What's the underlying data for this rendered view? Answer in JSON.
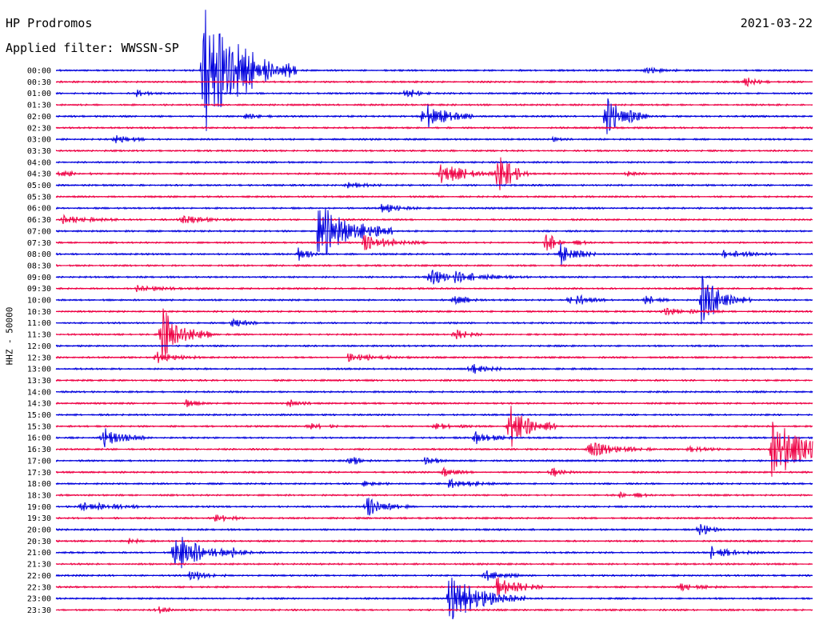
{
  "header": {
    "station": "HP Prodromos",
    "filter": "Applied filter: WWSSN-SP",
    "date": "2021-03-22"
  },
  "colors": {
    "blue_trace": "#0000dd",
    "red_trace": "#ee0044",
    "background": "#ffffff"
  },
  "chart_data": {
    "type": "line",
    "title": "HP Prodromos",
    "subtitle": "Applied filter: WWSSN-SP",
    "ylabel": "HHZ - 50000",
    "xlabel": "",
    "x_unit": "minutes within 30-minute line",
    "xlim": [
      0,
      30
    ],
    "grid": false,
    "rows": [
      "00:00",
      "00:30",
      "01:00",
      "01:30",
      "02:00",
      "02:30",
      "03:00",
      "03:30",
      "04:00",
      "04:30",
      "05:00",
      "05:30",
      "06:00",
      "06:30",
      "07:00",
      "07:30",
      "08:00",
      "08:30",
      "09:00",
      "09:30",
      "10:00",
      "10:30",
      "11:00",
      "11:30",
      "12:00",
      "12:30",
      "13:00",
      "13:30",
      "14:00",
      "14:30",
      "15:00",
      "15:30",
      "16:00",
      "16:30",
      "17:00",
      "17:30",
      "18:00",
      "18:30",
      "19:00",
      "19:30",
      "20:00",
      "20:30",
      "21:00",
      "21:30",
      "22:00",
      "22:30",
      "23:00",
      "23:30"
    ],
    "row_colors": [
      "blue",
      "red"
    ],
    "events": [
      {
        "row": "00:00",
        "minute": 5.8,
        "amplitude": 7.0,
        "duration": 1.5
      },
      {
        "row": "01:00",
        "minute": 3.2,
        "amplitude": 0.6,
        "duration": 0.4
      },
      {
        "row": "01:00",
        "minute": 13.9,
        "amplitude": 0.6,
        "duration": 0.4
      },
      {
        "row": "00:00",
        "minute": 23.4,
        "amplitude": 0.3,
        "duration": 0.6
      },
      {
        "row": "00:30",
        "minute": 27.3,
        "amplitude": 0.6,
        "duration": 0.4
      },
      {
        "row": "02:00",
        "minute": 14.6,
        "amplitude": 1.5,
        "duration": 0.8
      },
      {
        "row": "02:00",
        "minute": 21.8,
        "amplitude": 2.2,
        "duration": 0.7
      },
      {
        "row": "02:00",
        "minute": 7.5,
        "amplitude": 0.3,
        "duration": 0.5
      },
      {
        "row": "03:00",
        "minute": 2.3,
        "amplitude": 0.5,
        "duration": 0.6
      },
      {
        "row": "03:00",
        "minute": 19.7,
        "amplitude": 0.3,
        "duration": 0.3
      },
      {
        "row": "04:30",
        "minute": 15.2,
        "amplitude": 1.2,
        "duration": 1.0
      },
      {
        "row": "04:30",
        "minute": 17.5,
        "amplitude": 2.6,
        "duration": 0.5
      },
      {
        "row": "04:30",
        "minute": 0.2,
        "amplitude": 0.3,
        "duration": 0.6
      },
      {
        "row": "04:30",
        "minute": 22.6,
        "amplitude": 0.3,
        "duration": 0.3
      },
      {
        "row": "05:00",
        "minute": 11.5,
        "amplitude": 0.4,
        "duration": 0.6
      },
      {
        "row": "06:00",
        "minute": 12.9,
        "amplitude": 0.5,
        "duration": 0.6
      },
      {
        "row": "06:30",
        "minute": 0.3,
        "amplitude": 0.4,
        "duration": 1.0
      },
      {
        "row": "06:30",
        "minute": 4.9,
        "amplitude": 0.4,
        "duration": 1.0
      },
      {
        "row": "07:00",
        "minute": 10.4,
        "amplitude": 3.2,
        "duration": 1.2
      },
      {
        "row": "07:30",
        "minute": 12.2,
        "amplitude": 0.9,
        "duration": 1.0
      },
      {
        "row": "07:30",
        "minute": 19.4,
        "amplitude": 0.9,
        "duration": 0.7
      },
      {
        "row": "08:00",
        "minute": 9.6,
        "amplitude": 0.8,
        "duration": 0.4
      },
      {
        "row": "08:00",
        "minute": 20.0,
        "amplitude": 1.1,
        "duration": 0.6
      },
      {
        "row": "08:00",
        "minute": 26.5,
        "amplitude": 0.5,
        "duration": 0.8
      },
      {
        "row": "09:00",
        "minute": 14.8,
        "amplitude": 1.0,
        "duration": 0.5
      },
      {
        "row": "09:00",
        "minute": 15.8,
        "amplitude": 0.5,
        "duration": 1.2
      },
      {
        "row": "09:30",
        "minute": 3.2,
        "amplitude": 0.3,
        "duration": 1.0
      },
      {
        "row": "10:00",
        "minute": 15.8,
        "amplitude": 0.6,
        "duration": 0.5
      },
      {
        "row": "10:00",
        "minute": 20.3,
        "amplitude": 1.0,
        "duration": 0.6
      },
      {
        "row": "10:00",
        "minute": 23.4,
        "amplitude": 0.5,
        "duration": 0.4
      },
      {
        "row": "10:00",
        "minute": 25.6,
        "amplitude": 2.6,
        "duration": 0.8
      },
      {
        "row": "10:30",
        "minute": 24.1,
        "amplitude": 0.3,
        "duration": 1.0
      },
      {
        "row": "11:00",
        "minute": 7.0,
        "amplitude": 0.7,
        "duration": 0.4
      },
      {
        "row": "11:30",
        "minute": 4.2,
        "amplitude": 2.8,
        "duration": 0.8
      },
      {
        "row": "11:30",
        "minute": 15.8,
        "amplitude": 0.6,
        "duration": 0.5
      },
      {
        "row": "12:30",
        "minute": 4.0,
        "amplitude": 0.6,
        "duration": 0.8
      },
      {
        "row": "12:30",
        "minute": 11.6,
        "amplitude": 0.4,
        "duration": 1.0
      },
      {
        "row": "13:00",
        "minute": 16.4,
        "amplitude": 0.6,
        "duration": 0.6
      },
      {
        "row": "14:30",
        "minute": 5.2,
        "amplitude": 0.5,
        "duration": 0.4
      },
      {
        "row": "14:30",
        "minute": 9.2,
        "amplitude": 0.4,
        "duration": 0.4
      },
      {
        "row": "15:30",
        "minute": 17.9,
        "amplitude": 2.6,
        "duration": 0.8
      },
      {
        "row": "15:30",
        "minute": 10.0,
        "amplitude": 0.3,
        "duration": 0.6
      },
      {
        "row": "15:30",
        "minute": 15.0,
        "amplitude": 0.3,
        "duration": 0.8
      },
      {
        "row": "16:00",
        "minute": 1.8,
        "amplitude": 1.4,
        "duration": 0.7
      },
      {
        "row": "16:00",
        "minute": 16.6,
        "amplitude": 0.8,
        "duration": 0.6
      },
      {
        "row": "16:30",
        "minute": 21.1,
        "amplitude": 0.8,
        "duration": 1.0
      },
      {
        "row": "16:30",
        "minute": 25.1,
        "amplitude": 0.4,
        "duration": 0.5
      },
      {
        "row": "16:30",
        "minute": 28.4,
        "amplitude": 3.5,
        "duration": 1.2
      },
      {
        "row": "17:00",
        "minute": 11.6,
        "amplitude": 0.6,
        "duration": 0.4
      },
      {
        "row": "17:00",
        "minute": 14.6,
        "amplitude": 0.4,
        "duration": 0.5
      },
      {
        "row": "17:30",
        "minute": 15.3,
        "amplitude": 0.5,
        "duration": 0.5
      },
      {
        "row": "17:30",
        "minute": 19.6,
        "amplitude": 0.6,
        "duration": 0.4
      },
      {
        "row": "18:00",
        "minute": 15.6,
        "amplitude": 0.4,
        "duration": 1.0
      },
      {
        "row": "18:00",
        "minute": 12.2,
        "amplitude": 0.4,
        "duration": 0.4
      },
      {
        "row": "18:30",
        "minute": 22.3,
        "amplitude": 0.7,
        "duration": 0.5
      },
      {
        "row": "19:00",
        "minute": 1.0,
        "amplitude": 0.5,
        "duration": 1.2
      },
      {
        "row": "19:00",
        "minute": 12.3,
        "amplitude": 1.2,
        "duration": 0.7
      },
      {
        "row": "19:30",
        "minute": 6.3,
        "amplitude": 0.4,
        "duration": 0.6
      },
      {
        "row": "20:00",
        "minute": 25.5,
        "amplitude": 0.7,
        "duration": 0.4
      },
      {
        "row": "20:30",
        "minute": 2.8,
        "amplitude": 0.3,
        "duration": 0.5
      },
      {
        "row": "21:00",
        "minute": 4.7,
        "amplitude": 2.4,
        "duration": 0.9
      },
      {
        "row": "21:00",
        "minute": 7.0,
        "amplitude": 0.5,
        "duration": 0.5
      },
      {
        "row": "21:00",
        "minute": 26.0,
        "amplitude": 0.6,
        "duration": 0.8
      },
      {
        "row": "22:00",
        "minute": 5.3,
        "amplitude": 0.6,
        "duration": 0.6
      },
      {
        "row": "22:00",
        "minute": 17.0,
        "amplitude": 0.6,
        "duration": 0.6
      },
      {
        "row": "22:30",
        "minute": 17.5,
        "amplitude": 1.2,
        "duration": 0.8
      },
      {
        "row": "22:30",
        "minute": 24.7,
        "amplitude": 0.5,
        "duration": 0.6
      },
      {
        "row": "23:00",
        "minute": 15.6,
        "amplitude": 2.4,
        "duration": 1.2
      },
      {
        "row": "23:30",
        "minute": 4.0,
        "amplitude": 0.4,
        "duration": 0.4
      }
    ]
  }
}
